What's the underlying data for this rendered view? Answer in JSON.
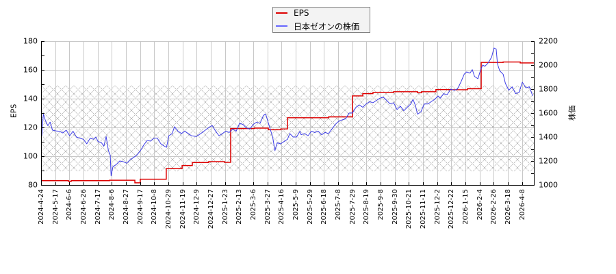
{
  "chart_data": {
    "type": "line",
    "title": "",
    "xlabel": "",
    "ylabel": "EPS",
    "ylabel_right": "株価",
    "x_unit": "tick_index",
    "x_range": [
      0,
      34.83
    ],
    "x_ticks": [
      "2024-4-24",
      "2024-5-17",
      "2024-6-6",
      "2024-6-26",
      "2024-7-17",
      "2024-8-6",
      "2024-8-27",
      "2024-9-17",
      "2024-10-8",
      "2024-10-29",
      "2024-11-19",
      "2024-12-9",
      "2024-12-27",
      "2025-1-23",
      "2025-2-13",
      "2025-3-6",
      "2025-3-27",
      "2025-4-16",
      "2025-5-9",
      "2025-5-29",
      "2025-6-18",
      "2025-7-8",
      "2025-7-29",
      "2025-8-19",
      "2025-9-8",
      "2025-9-30",
      "2025-10-21",
      "2025-11-11",
      "2025-12-2",
      "2025-12-22",
      "2026-1-15",
      "2026-2-4",
      "2026-2-26",
      "2026-3-18",
      "2026-4-8"
    ],
    "y_left": {
      "min": 80,
      "max": 180,
      "ticks": [
        80,
        100,
        120,
        140,
        160,
        180
      ],
      "minor_step": 10
    },
    "y_right": {
      "min": 1000,
      "max": 2200,
      "ticks": [
        1000,
        1200,
        1400,
        1600,
        1800,
        2000,
        2200
      ],
      "minor_step": 100
    },
    "grid": true,
    "shaded_band": {
      "axis": "left",
      "from": 89.5,
      "to": 149.0
    },
    "legend": {
      "position": "top-center"
    },
    "series": [
      {
        "name": "EPS",
        "axis": "left",
        "style": "step",
        "color": "#dd0000",
        "points": [
          [
            0,
            83.0
          ],
          [
            1.94,
            82.5
          ],
          [
            2.13,
            83.0
          ],
          [
            4.84,
            83.3
          ],
          [
            6.63,
            81.5
          ],
          [
            7.01,
            84.0
          ],
          [
            8.85,
            91.4
          ],
          [
            9.97,
            93.5
          ],
          [
            10.69,
            95.6
          ],
          [
            11.85,
            96.2
          ],
          [
            12.97,
            95.7
          ],
          [
            13.4,
            119.2
          ],
          [
            15.09,
            119.5
          ],
          [
            16.06,
            118.4
          ],
          [
            16.95,
            118.9
          ],
          [
            17.42,
            126.7
          ],
          [
            20.32,
            127.3
          ],
          [
            22.01,
            141.9
          ],
          [
            22.74,
            143.5
          ],
          [
            23.46,
            144.3
          ],
          [
            24.92,
            144.8
          ],
          [
            26.61,
            144.1
          ],
          [
            26.9,
            144.8
          ],
          [
            27.91,
            146.3
          ],
          [
            28.88,
            146.2
          ],
          [
            30.14,
            146.9
          ],
          [
            31.11,
            165.2
          ],
          [
            32.66,
            165.5
          ],
          [
            33.87,
            164.8
          ],
          [
            34.83,
            164.8
          ]
        ]
      },
      {
        "name": "日本ゼオンの株価",
        "axis": "right",
        "style": "line",
        "color": "#3c3ce6",
        "legend_color": "#6666ff",
        "points": [
          [
            0.05,
            1410
          ],
          [
            0.16,
            1590
          ],
          [
            0.32,
            1533
          ],
          [
            0.48,
            1495
          ],
          [
            0.64,
            1524
          ],
          [
            0.81,
            1457
          ],
          [
            1.05,
            1451
          ],
          [
            1.29,
            1448
          ],
          [
            1.53,
            1434
          ],
          [
            1.78,
            1457
          ],
          [
            2.02,
            1410
          ],
          [
            2.26,
            1448
          ],
          [
            2.5,
            1400
          ],
          [
            2.74,
            1390
          ],
          [
            2.99,
            1381
          ],
          [
            3.23,
            1343
          ],
          [
            3.47,
            1390
          ],
          [
            3.71,
            1381
          ],
          [
            3.87,
            1400
          ],
          [
            4.03,
            1362
          ],
          [
            4.27,
            1352
          ],
          [
            4.44,
            1324
          ],
          [
            4.6,
            1404
          ],
          [
            4.76,
            1286
          ],
          [
            4.89,
            1248
          ],
          [
            4.95,
            1076
          ],
          [
            5.08,
            1152
          ],
          [
            5.32,
            1171
          ],
          [
            5.56,
            1200
          ],
          [
            5.81,
            1194
          ],
          [
            6.05,
            1181
          ],
          [
            6.29,
            1210
          ],
          [
            6.53,
            1229
          ],
          [
            6.77,
            1248
          ],
          [
            7.02,
            1286
          ],
          [
            7.26,
            1333
          ],
          [
            7.5,
            1371
          ],
          [
            7.74,
            1366
          ],
          [
            7.98,
            1390
          ],
          [
            8.22,
            1390
          ],
          [
            8.47,
            1343
          ],
          [
            8.71,
            1324
          ],
          [
            8.87,
            1314
          ],
          [
            9.03,
            1410
          ],
          [
            9.27,
            1429
          ],
          [
            9.43,
            1486
          ],
          [
            9.68,
            1448
          ],
          [
            9.92,
            1429
          ],
          [
            10.16,
            1448
          ],
          [
            10.4,
            1429
          ],
          [
            10.64,
            1410
          ],
          [
            10.97,
            1404
          ],
          [
            11.29,
            1429
          ],
          [
            11.61,
            1457
          ],
          [
            11.94,
            1486
          ],
          [
            12.1,
            1495
          ],
          [
            12.34,
            1448
          ],
          [
            12.58,
            1410
          ],
          [
            12.82,
            1429
          ],
          [
            13.06,
            1448
          ],
          [
            13.3,
            1438
          ],
          [
            13.55,
            1467
          ],
          [
            13.79,
            1448
          ],
          [
            14.03,
            1514
          ],
          [
            14.27,
            1505
          ],
          [
            14.51,
            1476
          ],
          [
            14.76,
            1467
          ],
          [
            15.0,
            1505
          ],
          [
            15.24,
            1524
          ],
          [
            15.48,
            1514
          ],
          [
            15.72,
            1581
          ],
          [
            15.88,
            1590
          ],
          [
            16.12,
            1495
          ],
          [
            16.37,
            1400
          ],
          [
            16.53,
            1286
          ],
          [
            16.69,
            1352
          ],
          [
            16.93,
            1343
          ],
          [
            17.17,
            1362
          ],
          [
            17.42,
            1381
          ],
          [
            17.58,
            1429
          ],
          [
            17.82,
            1400
          ],
          [
            18.06,
            1400
          ],
          [
            18.3,
            1448
          ],
          [
            18.38,
            1419
          ],
          [
            18.63,
            1429
          ],
          [
            18.87,
            1410
          ],
          [
            19.11,
            1448
          ],
          [
            19.35,
            1438
          ],
          [
            19.59,
            1448
          ],
          [
            19.84,
            1419
          ],
          [
            20.08,
            1438
          ],
          [
            20.32,
            1429
          ],
          [
            20.56,
            1467
          ],
          [
            20.8,
            1505
          ],
          [
            21.05,
            1533
          ],
          [
            21.29,
            1543
          ],
          [
            21.53,
            1552
          ],
          [
            21.77,
            1600
          ],
          [
            22.01,
            1600
          ],
          [
            22.26,
            1648
          ],
          [
            22.5,
            1667
          ],
          [
            22.74,
            1648
          ],
          [
            22.98,
            1676
          ],
          [
            23.22,
            1695
          ],
          [
            23.46,
            1686
          ],
          [
            23.71,
            1705
          ],
          [
            23.95,
            1724
          ],
          [
            24.19,
            1733
          ],
          [
            24.43,
            1705
          ],
          [
            24.67,
            1676
          ],
          [
            24.92,
            1686
          ],
          [
            25.16,
            1629
          ],
          [
            25.4,
            1657
          ],
          [
            25.64,
            1619
          ],
          [
            25.88,
            1648
          ],
          [
            26.13,
            1676
          ],
          [
            26.29,
            1714
          ],
          [
            26.45,
            1667
          ],
          [
            26.61,
            1590
          ],
          [
            26.85,
            1610
          ],
          [
            27.09,
            1676
          ],
          [
            27.34,
            1676
          ],
          [
            27.58,
            1695
          ],
          [
            27.82,
            1714
          ],
          [
            28.06,
            1743
          ],
          [
            28.22,
            1724
          ],
          [
            28.46,
            1762
          ],
          [
            28.7,
            1752
          ],
          [
            28.95,
            1800
          ],
          [
            29.19,
            1790
          ],
          [
            29.43,
            1800
          ],
          [
            29.67,
            1857
          ],
          [
            29.91,
            1924
          ],
          [
            30.08,
            1943
          ],
          [
            30.32,
            1933
          ],
          [
            30.48,
            1962
          ],
          [
            30.64,
            1905
          ],
          [
            30.88,
            1886
          ],
          [
            31.05,
            1952
          ],
          [
            31.21,
            2000
          ],
          [
            31.37,
            1990
          ],
          [
            31.61,
            2019
          ],
          [
            31.85,
            2067
          ],
          [
            32.01,
            2143
          ],
          [
            32.17,
            2133
          ],
          [
            32.26,
            2010
          ],
          [
            32.42,
            1952
          ],
          [
            32.66,
            1924
          ],
          [
            32.82,
            1848
          ],
          [
            33.06,
            1790
          ],
          [
            33.3,
            1819
          ],
          [
            33.54,
            1762
          ],
          [
            33.78,
            1771
          ],
          [
            34.02,
            1857
          ],
          [
            34.27,
            1810
          ],
          [
            34.51,
            1819
          ],
          [
            34.75,
            1743
          ]
        ]
      }
    ]
  }
}
